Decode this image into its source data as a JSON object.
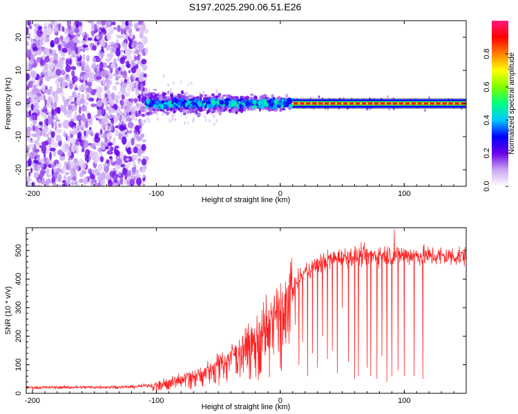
{
  "title": "S197.2025.290.06.51.E26",
  "chart_data": [
    {
      "type": "heatmap",
      "name": "spectrogram",
      "xlabel": "Height of straight line (km)",
      "ylabel": "Frequency (Hz)",
      "xlim": [
        -205,
        150
      ],
      "ylim": [
        -25,
        25
      ],
      "xticks": [
        -200,
        -100,
        0,
        100
      ],
      "yticks": [
        -20,
        -10,
        0,
        10,
        20
      ],
      "colorbar": {
        "label": "Normalized spectral amplitude",
        "ticks": [
          0.0,
          0.2,
          0.4,
          0.6,
          0.8
        ],
        "range": [
          0,
          1
        ],
        "colors": [
          "#ffffff",
          "#c9a6f2",
          "#6a00e8",
          "#0000ff",
          "#00c8ff",
          "#00ff80",
          "#80ff00",
          "#ffff00",
          "#ff8000",
          "#ff0000",
          "#ff1a80"
        ]
      },
      "regions": [
        {
          "x_range": [
            -205,
            -108
          ],
          "description_level": 0.15,
          "spread_hz": 25
        },
        {
          "x_range": [
            -108,
            10
          ],
          "description_level": 0.35,
          "spread_hz": 5
        },
        {
          "x_range": [
            10,
            150
          ],
          "description_level": 0.95,
          "spread_hz": 0.8
        }
      ]
    },
    {
      "type": "line",
      "name": "snr",
      "xlabel": "Height of straight line (km)",
      "ylabel": "SNR (10 * v/v)",
      "xlim": [
        -205,
        150
      ],
      "ylim": [
        0,
        580
      ],
      "xticks": [
        -200,
        -100,
        0,
        100
      ],
      "yticks": [
        0,
        100,
        200,
        300,
        400,
        500
      ],
      "color": "#ff2020",
      "trend": {
        "x": [
          -205,
          -120,
          -100,
          -80,
          -60,
          -40,
          -20,
          0,
          20,
          40,
          60,
          80,
          100,
          120,
          150
        ],
        "y": [
          20,
          22,
          30,
          55,
          80,
          130,
          200,
          300,
          430,
          470,
          480,
          485,
          485,
          480,
          480
        ]
      },
      "dropouts": [
        {
          "x": 12,
          "y": 240
        },
        {
          "x": 15,
          "y": 100
        },
        {
          "x": 18,
          "y": 180
        },
        {
          "x": 22,
          "y": 60
        },
        {
          "x": 26,
          "y": 140
        },
        {
          "x": 30,
          "y": 90
        },
        {
          "x": 34,
          "y": 200
        },
        {
          "x": 38,
          "y": 120
        },
        {
          "x": 42,
          "y": 150
        },
        {
          "x": 46,
          "y": 70
        },
        {
          "x": 50,
          "y": 300
        },
        {
          "x": 55,
          "y": 110
        },
        {
          "x": 60,
          "y": 50
        },
        {
          "x": 63,
          "y": 60
        },
        {
          "x": 70,
          "y": 90
        },
        {
          "x": 73,
          "y": 60
        },
        {
          "x": 78,
          "y": 50
        },
        {
          "x": 82,
          "y": 130
        },
        {
          "x": 86,
          "y": 40
        },
        {
          "x": 90,
          "y": 60
        },
        {
          "x": 95,
          "y": 80
        },
        {
          "x": 100,
          "y": 60
        },
        {
          "x": 108,
          "y": 60
        },
        {
          "x": 115,
          "y": 50
        }
      ],
      "peak": {
        "x": 92,
        "y": 575
      }
    }
  ]
}
